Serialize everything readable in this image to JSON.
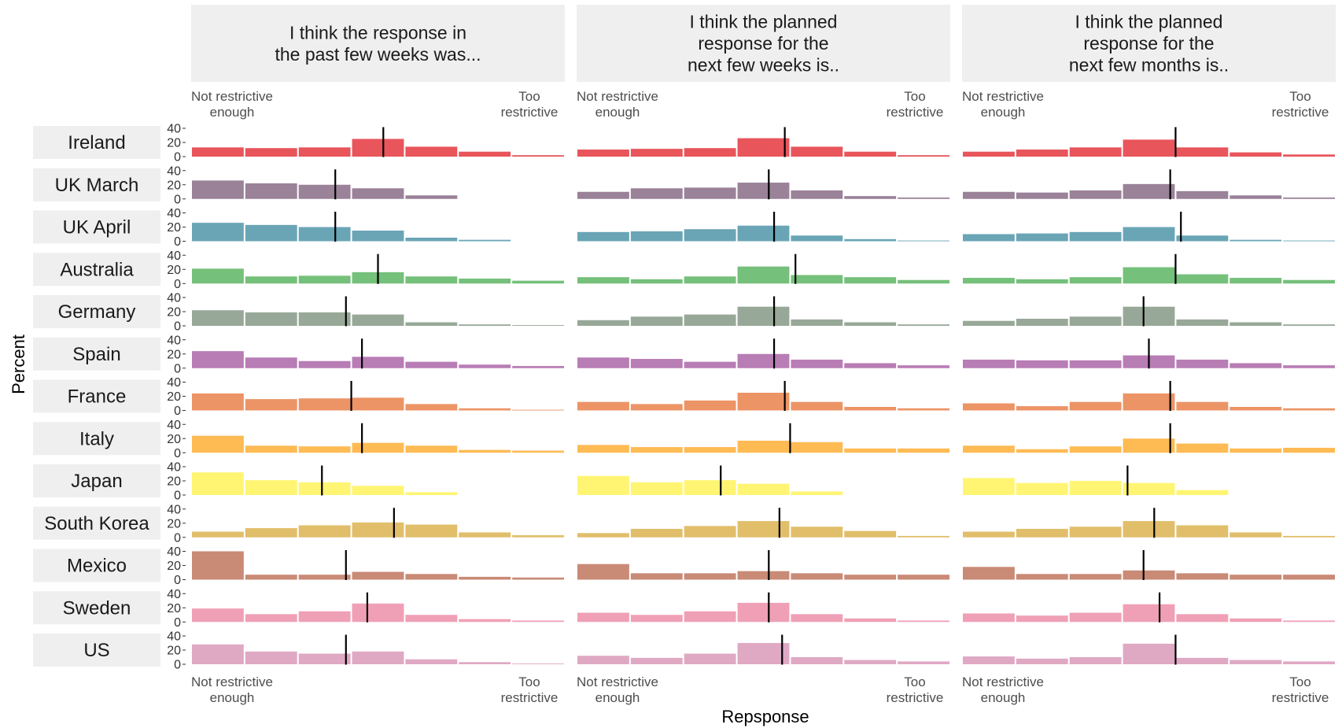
{
  "chart_data": {
    "type": "bar",
    "ylabel": "Percent",
    "xlabel": "Repsponse",
    "ylim": [
      0,
      40
    ],
    "y_ticks": [
      0,
      20,
      40
    ],
    "grid": false,
    "response_levels": 7,
    "left_end_label": [
      "Not restrictive",
      "enough"
    ],
    "right_end_label": [
      "Too",
      "restrictive"
    ],
    "panels": [
      {
        "title": [
          "I think the response in",
          "the past few weeks was..."
        ]
      },
      {
        "title": [
          "I think the planned",
          "response for the",
          "next few weeks is.."
        ]
      },
      {
        "title": [
          "I think the planned",
          "response for the",
          "next few months is.."
        ]
      }
    ],
    "rows": [
      {
        "name": "Ireland",
        "color": "#E8555B",
        "panels": [
          {
            "values": [
              13,
              12,
              13,
              25,
              14,
              7,
              2
            ],
            "mean": 4.1
          },
          {
            "values": [
              10,
              11,
              12,
              26,
              14,
              7,
              2
            ],
            "mean": 4.4
          },
          {
            "values": [
              7,
              10,
              13,
              24,
              13,
              6,
              3
            ],
            "mean": 4.5
          }
        ]
      },
      {
        "name": "UK March",
        "color": "#9A8299",
        "panels": [
          {
            "values": [
              26,
              22,
              20,
              15,
              5,
              0,
              0
            ],
            "mean": 3.2
          },
          {
            "values": [
              10,
              15,
              16,
              23,
              12,
              4,
              2
            ],
            "mean": 4.1
          },
          {
            "values": [
              10,
              9,
              12,
              21,
              11,
              5,
              2
            ],
            "mean": 4.4
          }
        ]
      },
      {
        "name": "UK April",
        "color": "#6AA5B6",
        "panels": [
          {
            "values": [
              26,
              23,
              20,
              15,
              5,
              2,
              0
            ],
            "mean": 3.2
          },
          {
            "values": [
              13,
              14,
              17,
              22,
              8,
              3,
              1
            ],
            "mean": 4.2
          },
          {
            "values": [
              10,
              11,
              13,
              20,
              8,
              2,
              1
            ],
            "mean": 4.6
          }
        ]
      },
      {
        "name": "Australia",
        "color": "#75C07A",
        "panels": [
          {
            "values": [
              21,
              10,
              11,
              16,
              10,
              7,
              4
            ],
            "mean": 4.0
          },
          {
            "values": [
              9,
              6,
              10,
              24,
              12,
              9,
              5
            ],
            "mean": 4.6
          },
          {
            "values": [
              8,
              6,
              9,
              23,
              13,
              8,
              5
            ],
            "mean": 4.5
          }
        ]
      },
      {
        "name": "Germany",
        "color": "#98A898",
        "panels": [
          {
            "values": [
              22,
              19,
              19,
              16,
              5,
              2,
              1
            ],
            "mean": 3.4
          },
          {
            "values": [
              8,
              13,
              16,
              27,
              9,
              5,
              2
            ],
            "mean": 4.2
          },
          {
            "values": [
              7,
              10,
              13,
              27,
              9,
              5,
              2
            ],
            "mean": 3.9
          }
        ]
      },
      {
        "name": "Spain",
        "color": "#B87DB5",
        "panels": [
          {
            "values": [
              24,
              15,
              10,
              16,
              9,
              5,
              3
            ],
            "mean": 3.7
          },
          {
            "values": [
              15,
              13,
              9,
              20,
              12,
              7,
              4
            ],
            "mean": 4.2
          },
          {
            "values": [
              12,
              11,
              11,
              18,
              12,
              7,
              4
            ],
            "mean": 4.0
          }
        ]
      },
      {
        "name": "France",
        "color": "#EC9466",
        "panels": [
          {
            "values": [
              24,
              16,
              17,
              18,
              9,
              3,
              1
            ],
            "mean": 3.5
          },
          {
            "values": [
              12,
              9,
              14,
              25,
              12,
              5,
              3
            ],
            "mean": 4.4
          },
          {
            "values": [
              10,
              6,
              12,
              24,
              12,
              5,
              3
            ],
            "mean": 4.4
          }
        ]
      },
      {
        "name": "Italy",
        "color": "#FEBB54",
        "panels": [
          {
            "values": [
              24,
              10,
              9,
              14,
              10,
              4,
              3
            ],
            "mean": 3.7
          },
          {
            "values": [
              11,
              8,
              8,
              17,
              15,
              6,
              6
            ],
            "mean": 4.5
          },
          {
            "values": [
              10,
              5,
              9,
              20,
              13,
              6,
              7
            ],
            "mean": 4.4
          }
        ]
      },
      {
        "name": "Japan",
        "color": "#FFF573",
        "panels": [
          {
            "values": [
              32,
              21,
              18,
              13,
              4,
              0,
              0
            ],
            "mean": 2.95
          },
          {
            "values": [
              27,
              18,
              21,
              16,
              5,
              0,
              0
            ],
            "mean": 3.2
          },
          {
            "values": [
              24,
              17,
              20,
              17,
              7,
              0,
              0
            ],
            "mean": 3.6
          }
        ]
      },
      {
        "name": "South Korea",
        "color": "#E1BE6A",
        "panels": [
          {
            "values": [
              8,
              13,
              17,
              21,
              18,
              7,
              3
            ],
            "mean": 4.3
          },
          {
            "values": [
              6,
              12,
              16,
              23,
              15,
              9,
              2
            ],
            "mean": 4.3
          },
          {
            "values": [
              8,
              12,
              15,
              23,
              17,
              7,
              2
            ],
            "mean": 4.1
          }
        ]
      },
      {
        "name": "Mexico",
        "color": "#C98A76",
        "panels": [
          {
            "values": [
              40,
              7,
              7,
              11,
              8,
              4,
              3
            ],
            "mean": 3.4
          },
          {
            "values": [
              22,
              9,
              9,
              12,
              9,
              7,
              7
            ],
            "mean": 4.1
          },
          {
            "values": [
              18,
              8,
              8,
              13,
              9,
              7,
              7
            ],
            "mean": 3.9
          }
        ]
      },
      {
        "name": "Sweden",
        "color": "#F0A0B6",
        "panels": [
          {
            "values": [
              19,
              11,
              15,
              26,
              10,
              4,
              2
            ],
            "mean": 3.8
          },
          {
            "values": [
              13,
              10,
              15,
              27,
              11,
              5,
              2
            ],
            "mean": 4.1
          },
          {
            "values": [
              12,
              9,
              13,
              25,
              11,
              5,
              2
            ],
            "mean": 4.2
          }
        ]
      },
      {
        "name": "US",
        "color": "#DFA9C4",
        "panels": [
          {
            "values": [
              28,
              18,
              15,
              18,
              7,
              3,
              1
            ],
            "mean": 3.4
          },
          {
            "values": [
              12,
              9,
              15,
              30,
              10,
              6,
              4
            ],
            "mean": 4.35
          },
          {
            "values": [
              11,
              8,
              10,
              29,
              9,
              6,
              4
            ],
            "mean": 4.5
          }
        ]
      }
    ]
  }
}
